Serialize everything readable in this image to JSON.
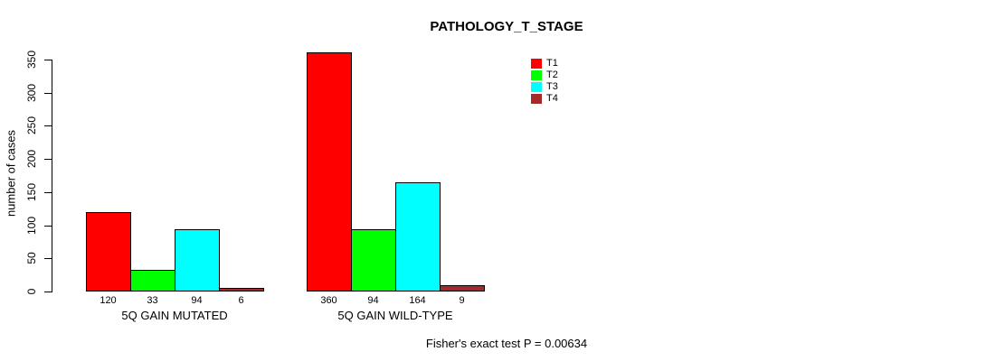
{
  "title": "PATHOLOGY_T_STAGE",
  "ylabel": "number of cases",
  "footer": "Fisher's exact test P = 0.00634",
  "chart_data": {
    "type": "bar",
    "title": "PATHOLOGY_T_STAGE",
    "xlabel": "",
    "ylabel": "number of cases",
    "categories": [
      "5Q GAIN MUTATED",
      "5Q GAIN WILD-TYPE"
    ],
    "series": [
      {
        "name": "T1",
        "color": "#FF0000",
        "values": [
          120,
          360
        ]
      },
      {
        "name": "T2",
        "color": "#00FF00",
        "values": [
          33,
          94
        ]
      },
      {
        "name": "T3",
        "color": "#00FFFF",
        "values": [
          94,
          164
        ]
      },
      {
        "name": "T4",
        "color": "#A52A2A",
        "values": [
          6,
          9
        ]
      }
    ],
    "bar_value_labels": [
      [
        120,
        33,
        94,
        6
      ],
      [
        360,
        94,
        164,
        9
      ]
    ],
    "ylim": [
      0,
      350
    ],
    "yticks": [
      0,
      50,
      100,
      150,
      200,
      250,
      300,
      350
    ],
    "grid": false,
    "legend_position": "top-right",
    "annotation": "Fisher's exact test P = 0.00634"
  }
}
